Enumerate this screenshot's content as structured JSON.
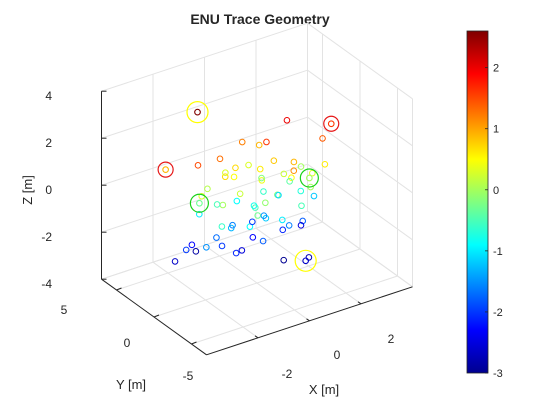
{
  "chart_data": {
    "type": "scatter3d",
    "title": "ENU Trace Geometry",
    "xlabel": "X [m]",
    "ylabel": "Y [m]",
    "zlabel": "Z [m]",
    "xlim": [
      -4,
      4
    ],
    "ylim": [
      -7,
      7
    ],
    "zlim": [
      -4,
      4
    ],
    "x_ticks": [
      "-2",
      "0",
      "2"
    ],
    "y_ticks": [
      "5",
      "0",
      "-5"
    ],
    "z_ticks": [
      "4",
      "2",
      "0",
      "-2",
      "-4"
    ],
    "colorbar": {
      "colormap": "jet",
      "range": [
        -3,
        2.6
      ],
      "ticks": [
        "2",
        "1",
        "0",
        "-1",
        "-2",
        "-3"
      ]
    },
    "grid": true,
    "color_variable": "z",
    "points": [
      {
        "x": 0.4,
        "y": 2.5,
        "z": 0.3
      },
      {
        "x": -0.6,
        "y": 1.0,
        "z": 0.5
      },
      {
        "x": 1.1,
        "y": 0.2,
        "z": 0.2
      },
      {
        "x": 1.5,
        "y": -2.0,
        "z": 0.0
      },
      {
        "x": -1.4,
        "y": 1.8,
        "z": 0.1
      },
      {
        "x": 0.9,
        "y": -1.5,
        "z": 0.5
      },
      {
        "x": -0.2,
        "y": -1.8,
        "z": -0.1
      },
      {
        "x": 2.0,
        "y": 1.0,
        "z": 0.0
      },
      {
        "x": -0.8,
        "y": -0.5,
        "z": 0.2
      },
      {
        "x": 0.3,
        "y": 0.6,
        "z": 0.6
      },
      {
        "x": -0.5,
        "y": 2.5,
        "z": 0.3
      },
      {
        "x": 1.2,
        "y": -0.8,
        "z": 0.9
      },
      {
        "x": -1.5,
        "y": -0.6,
        "z": 0.0
      },
      {
        "x": 0.7,
        "y": 1.8,
        "z": -0.2
      },
      {
        "x": -1.0,
        "y": 0.8,
        "z": 0.7
      },
      {
        "x": 1.8,
        "y": -1.2,
        "z": 0.3
      },
      {
        "x": 0.1,
        "y": -0.3,
        "z": 0.4
      },
      {
        "x": -0.7,
        "y": -2.5,
        "z": -0.3
      },
      {
        "x": 0.8,
        "y": 0.5,
        "z": 0.8
      },
      {
        "x": -2.0,
        "y": 0.5,
        "z": 0.3
      },
      {
        "x": 0.9,
        "y": 2.8,
        "z": 0.9
      },
      {
        "x": 2.2,
        "y": -1.5,
        "z": 0.6
      },
      {
        "x": -0.4,
        "y": 1.5,
        "z": 0.7
      },
      {
        "x": 0.5,
        "y": -1.0,
        "z": -0.2
      },
      {
        "x": -1.8,
        "y": -1.5,
        "z": -0.6
      },
      {
        "x": 1.5,
        "y": 0.8,
        "z": -0.4
      },
      {
        "x": -0.3,
        "y": -0.8,
        "z": -0.5
      },
      {
        "x": 0.6,
        "y": 1.2,
        "z": -0.6
      },
      {
        "x": -1.2,
        "y": 1.2,
        "z": -0.5
      },
      {
        "x": 1.0,
        "y": -2.5,
        "z": -0.5
      },
      {
        "x": 0.0,
        "y": 0.4,
        "z": -0.8
      },
      {
        "x": -0.8,
        "y": -1.8,
        "z": -0.9
      },
      {
        "x": 1.7,
        "y": 0.0,
        "z": -0.7
      },
      {
        "x": -1.6,
        "y": 2.2,
        "z": -1.0
      },
      {
        "x": 0.4,
        "y": -2.0,
        "z": -1.0
      },
      {
        "x": -0.2,
        "y": 2.0,
        "z": -0.9
      },
      {
        "x": 1.3,
        "y": 1.6,
        "z": -1.1
      },
      {
        "x": 0.2,
        "y": -0.5,
        "z": -1.2
      },
      {
        "x": -1.0,
        "y": 0.0,
        "z": -1.3
      },
      {
        "x": 2.3,
        "y": 0.3,
        "z": -1.2
      },
      {
        "x": -2.2,
        "y": -0.8,
        "z": -1.5
      },
      {
        "x": 0.5,
        "y": 0.8,
        "z": -1.5
      },
      {
        "x": -0.6,
        "y": 1.2,
        "z": -1.6
      },
      {
        "x": 0.9,
        "y": -1.2,
        "z": -1.6
      },
      {
        "x": -1.4,
        "y": 0.6,
        "z": -1.7
      },
      {
        "x": 1.6,
        "y": -0.6,
        "z": -1.8
      },
      {
        "x": -0.2,
        "y": -1.5,
        "z": -1.8
      },
      {
        "x": 0.4,
        "y": 2.0,
        "z": -2.0
      },
      {
        "x": -2.4,
        "y": 1.2,
        "z": -2.0
      },
      {
        "x": 1.0,
        "y": 0.0,
        "z": -2.1
      },
      {
        "x": -1.1,
        "y": -1.0,
        "z": -2.1
      },
      {
        "x": 0.1,
        "y": 0.9,
        "z": -2.3
      },
      {
        "x": -1.8,
        "y": 2.5,
        "z": -2.3
      },
      {
        "x": 2.0,
        "y": 1.0,
        "z": -2.5
      },
      {
        "x": -0.5,
        "y": 0.3,
        "z": -2.5
      },
      {
        "x": -2.6,
        "y": 2.0,
        "z": -2.6
      },
      {
        "x": 1.2,
        "y": -2.8,
        "z": -2.7
      },
      {
        "x": -1.5,
        "y": 3.0,
        "z": -2.8
      },
      {
        "x": 0.6,
        "y": -1.5,
        "z": -2.9
      },
      {
        "x": -1.3,
        "y": 0.2,
        "z": -2.0
      },
      {
        "x": 0.3,
        "y": 3.0,
        "z": 1.2
      },
      {
        "x": 0.7,
        "y": -2.5,
        "z": 1.1
      },
      {
        "x": 1.6,
        "y": 1.5,
        "z": 2.0
      },
      {
        "x": 0.6,
        "y": 0.8,
        "z": 1.6
      },
      {
        "x": -1.0,
        "y": 1.5,
        "z": 1.3
      },
      {
        "x": 2.4,
        "y": -0.5,
        "z": 1.4
      },
      {
        "x": -2.0,
        "y": 1.0,
        "z": 1.5
      }
    ],
    "markers": [
      {
        "x": -1.0,
        "y": 4.5,
        "z": 2.6,
        "ring": "yellow"
      },
      {
        "x": -2.5,
        "y": 3.6,
        "z": 0.9,
        "ring": "red"
      },
      {
        "x": 3.0,
        "y": 0.4,
        "z": 1.6,
        "ring": "red"
      },
      {
        "x": -1.8,
        "y": 1.5,
        "z": -0.3,
        "ring": "green"
      },
      {
        "x": 1.8,
        "y": -0.8,
        "z": 0.0,
        "ring": "green"
      },
      {
        "x": 0.9,
        "y": -3.4,
        "z": -2.6,
        "ring": "yellow"
      }
    ]
  }
}
